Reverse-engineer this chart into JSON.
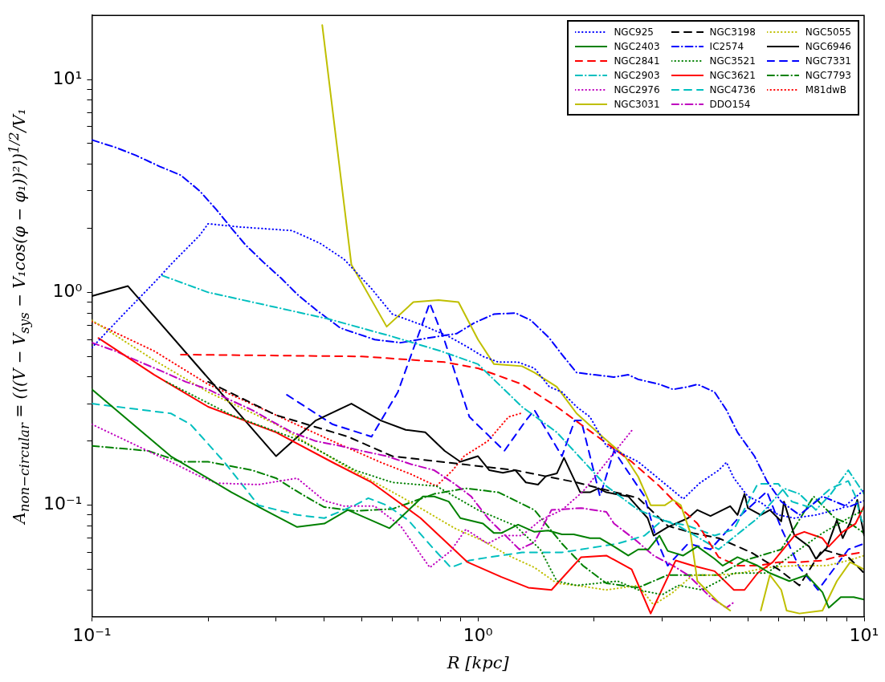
{
  "chart_data": {
    "type": "line",
    "xlabel": "R [kpc]",
    "ylabel": "A$_{non−circular}$ = (⟨(V − V$_{sys}$ − V₁cos(φ − φ₁))²⟩)$^{1/2}$/V₁",
    "log": "xy",
    "grid": false,
    "legend": "top right",
    "xlim": [
      0.1,
      10
    ],
    "ylim": [
      0.03,
      20
    ],
    "xticks": [
      {
        "value": 0.1,
        "label": "10⁻¹"
      },
      {
        "value": 0.2,
        "label": null
      },
      {
        "value": 0.3,
        "label": null
      },
      {
        "value": 0.4,
        "label": null
      },
      {
        "value": 0.5,
        "label": null
      },
      {
        "value": 0.6,
        "label": null
      },
      {
        "value": 0.7,
        "label": null
      },
      {
        "value": 0.8,
        "label": null
      },
      {
        "value": 0.9,
        "label": null
      },
      {
        "value": 1,
        "label": "10⁰"
      },
      {
        "value": 2,
        "label": null
      },
      {
        "value": 3,
        "label": null
      },
      {
        "value": 4,
        "label": null
      },
      {
        "value": 5,
        "label": null
      },
      {
        "value": 6,
        "label": null
      },
      {
        "value": 7,
        "label": null
      },
      {
        "value": 8,
        "label": null
      },
      {
        "value": 9,
        "label": null
      },
      {
        "value": 10,
        "label": "10¹"
      }
    ],
    "yticks": [
      {
        "value": 0.04,
        "label": null
      },
      {
        "value": 0.05,
        "label": null
      },
      {
        "value": 0.06,
        "label": null
      },
      {
        "value": 0.07,
        "label": null
      },
      {
        "value": 0.08,
        "label": null
      },
      {
        "value": 0.09,
        "label": null
      },
      {
        "value": 0.1,
        "label": "10⁻¹"
      },
      {
        "value": 0.2,
        "label": null
      },
      {
        "value": 0.3,
        "label": null
      },
      {
        "value": 0.4,
        "label": null
      },
      {
        "value": 0.5,
        "label": null
      },
      {
        "value": 0.6,
        "label": null
      },
      {
        "value": 0.7,
        "label": null
      },
      {
        "value": 0.8,
        "label": null
      },
      {
        "value": 0.9,
        "label": null
      },
      {
        "value": 1,
        "label": "10⁰"
      },
      {
        "value": 2,
        "label": null
      },
      {
        "value": 3,
        "label": null
      },
      {
        "value": 4,
        "label": null
      },
      {
        "value": 5,
        "label": null
      },
      {
        "value": 6,
        "label": null
      },
      {
        "value": 7,
        "label": null
      },
      {
        "value": 8,
        "label": null
      },
      {
        "value": 9,
        "label": null
      },
      {
        "value": 10,
        "label": "10¹"
      }
    ],
    "series": [
      {
        "name": "NGC925",
        "color": "#0000ff",
        "line_style": "dotted",
        "x": [
          0.1,
          0.12,
          0.147,
          0.16,
          0.19,
          0.2,
          0.24,
          0.33,
          0.39,
          0.45,
          0.53,
          0.6,
          0.72,
          0.84,
          0.93,
          1.03,
          1.13,
          1.27,
          1.4,
          1.53,
          1.65,
          1.8,
          1.95,
          2.15,
          2.6,
          3.1,
          3.4,
          3.75,
          4.2,
          4.4,
          4.6,
          5,
          5.4,
          6,
          6.6,
          7.5,
          8.8,
          10
        ],
        "values": [
          0.55,
          0.78,
          1.14,
          1.35,
          1.85,
          2.1,
          2.03,
          1.95,
          1.7,
          1.43,
          1.04,
          0.79,
          0.7,
          0.62,
          0.56,
          0.5,
          0.47,
          0.47,
          0.44,
          0.36,
          0.34,
          0.29,
          0.26,
          0.19,
          0.16,
          0.123,
          0.107,
          0.127,
          0.146,
          0.159,
          0.134,
          0.11,
          0.103,
          0.09,
          0.087,
          0.09,
          0.097,
          0.118
        ]
      },
      {
        "name": "NGC2403",
        "color": "#008000",
        "line_style": "solid",
        "x": [
          0.1,
          0.16,
          0.23,
          0.28,
          0.34,
          0.4,
          0.46,
          0.59,
          0.72,
          0.77,
          0.84,
          0.9,
          1.03,
          1.1,
          1.15,
          1.27,
          1.4,
          1.52,
          1.65,
          1.77,
          1.95,
          2.07,
          2.25,
          2.45,
          2.6,
          2.76,
          2.95,
          3.1,
          3.4,
          3.7,
          4.1,
          4.3,
          4.7,
          5.3,
          5.7,
          6.4,
          7.1,
          7.8,
          8.1,
          8.7,
          9.4,
          10
        ],
        "values": [
          0.35,
          0.17,
          0.115,
          0.095,
          0.079,
          0.082,
          0.095,
          0.078,
          0.11,
          0.11,
          0.104,
          0.087,
          0.082,
          0.074,
          0.074,
          0.081,
          0.075,
          0.076,
          0.073,
          0.073,
          0.07,
          0.07,
          0.064,
          0.058,
          0.062,
          0.062,
          0.072,
          0.061,
          0.058,
          0.064,
          0.056,
          0.052,
          0.057,
          0.052,
          0.048,
          0.044,
          0.047,
          0.039,
          0.033,
          0.037,
          0.037,
          0.036
        ]
      },
      {
        "name": "NGC2841",
        "color": "#ff0000",
        "line_style": "dashed",
        "x": [
          0.17,
          0.5,
          0.82,
          1.0,
          1.3,
          1.6,
          2.2,
          2.5,
          2.95,
          3.35,
          3.7,
          4.2,
          4.7,
          5.3,
          6,
          6.8,
          7.8,
          8.4,
          9.8,
          10
        ],
        "values": [
          0.51,
          0.5,
          0.47,
          0.44,
          0.37,
          0.29,
          0.19,
          0.16,
          0.123,
          0.097,
          0.082,
          0.057,
          0.052,
          0.052,
          0.054,
          0.054,
          0.055,
          0.057,
          0.06,
          0.06
        ]
      },
      {
        "name": "NGC2903",
        "color": "#00bfbf",
        "line_style": "dashdot",
        "x": [
          0.152,
          0.2,
          0.3,
          0.41,
          0.6,
          0.8,
          1.0,
          1.3,
          1.6,
          2.15,
          2.6,
          3.3,
          4.2,
          5.3,
          6.2,
          6.8,
          7.5,
          8.2,
          9.1,
          10
        ],
        "values": [
          1.2,
          1.0,
          0.85,
          0.75,
          0.62,
          0.53,
          0.46,
          0.29,
          0.22,
          0.123,
          0.095,
          0.08,
          0.062,
          0.087,
          0.12,
          0.113,
          0.095,
          0.113,
          0.146,
          0.113
        ]
      },
      {
        "name": "NGC2976",
        "color": "#bf00bf",
        "line_style": "dotted",
        "x": [
          0.1,
          0.16,
          0.19,
          0.21,
          0.27,
          0.34,
          0.4,
          0.45,
          0.54,
          0.63,
          0.75,
          0.85,
          0.93,
          1.06,
          1.16,
          1.3,
          1.45,
          1.65,
          1.87,
          2.15,
          2.5
        ],
        "values": [
          0.24,
          0.16,
          0.137,
          0.127,
          0.125,
          0.134,
          0.105,
          0.099,
          0.099,
          0.08,
          0.051,
          0.061,
          0.077,
          0.066,
          0.072,
          0.072,
          0.085,
          0.095,
          0.116,
          0.159,
          0.224
        ]
      },
      {
        "name": "NGC3031",
        "color": "#bfbf00",
        "line_style": "solid",
        "x": [
          0.395,
          0.47,
          0.58,
          0.68,
          0.79,
          0.89,
          1.0,
          1.1,
          1.3,
          1.4,
          1.6,
          1.8,
          2.1,
          2.4,
          2.6,
          2.8,
          3.05,
          3.2,
          3.35,
          3.55,
          3.7,
          4.2,
          4.5,
          5.0,
          5.4,
          5.7,
          6.1,
          6.3,
          6.8,
          7.8,
          8.5,
          9.2,
          10
        ],
        "values": [
          18,
          1.35,
          0.69,
          0.9,
          0.92,
          0.9,
          0.6,
          0.46,
          0.45,
          0.42,
          0.36,
          0.27,
          0.21,
          0.17,
          0.136,
          0.1,
          0.1,
          0.106,
          0.1,
          0.074,
          0.044,
          0.035,
          0.032,
          null,
          0.032,
          0.047,
          0.04,
          0.032,
          0.031,
          0.032,
          0.044,
          0.054,
          0.05
        ]
      },
      {
        "name": "NGC3198",
        "color": "#000000",
        "line_style": "dashed",
        "x": [
          0.2,
          0.3,
          0.46,
          0.6,
          0.8,
          1.25,
          1.8,
          2.6,
          3.1,
          3.6,
          4.2,
          5.1,
          6,
          6.8,
          7.8,
          9.1,
          10
        ],
        "values": [
          0.38,
          0.265,
          0.21,
          0.17,
          0.16,
          0.146,
          0.128,
          0.108,
          0.08,
          0.074,
          0.07,
          0.06,
          0.05,
          0.042,
          0.062,
          0.057,
          0.048
        ]
      },
      {
        "name": "IC2574",
        "color": "#0000ff",
        "line_style": "dashdot",
        "x": [
          0.1,
          0.115,
          0.13,
          0.15,
          0.17,
          0.19,
          0.21,
          0.23,
          0.25,
          0.28,
          0.31,
          0.34,
          0.38,
          0.44,
          0.54,
          0.63,
          0.74,
          0.88,
          0.98,
          1.1,
          1.25,
          1.37,
          1.53,
          1.65,
          1.8,
          2,
          2.25,
          2.45,
          2.6,
          2.95,
          3.2,
          3.5,
          3.7,
          4.1,
          4.4,
          4.7,
          5.2,
          5.6,
          6.1,
          6.8,
          7.8,
          9.1,
          10
        ],
        "values": [
          5.2,
          4.8,
          4.4,
          3.9,
          3.55,
          3.0,
          2.45,
          2.0,
          1.67,
          1.37,
          1.16,
          0.98,
          0.83,
          0.68,
          0.6,
          0.58,
          0.61,
          0.64,
          0.72,
          0.79,
          0.8,
          0.74,
          0.61,
          0.51,
          0.42,
          0.41,
          0.4,
          0.41,
          0.39,
          0.37,
          0.35,
          0.36,
          0.37,
          0.34,
          0.28,
          0.22,
          0.17,
          0.13,
          0.104,
          0.09,
          0.11,
          0.098,
          0.105
        ]
      },
      {
        "name": "NGC3521",
        "color": "#008000",
        "line_style": "dotted",
        "x": [
          0.156,
          0.23,
          0.35,
          0.48,
          0.6,
          0.78,
          1.0,
          1.25,
          1.45,
          1.6,
          1.8,
          2.3,
          2.6,
          3,
          3.3,
          3.8,
          4.6,
          5.6,
          6.8,
          7.8,
          9.1,
          10
        ],
        "values": [
          0.38,
          0.265,
          0.2,
          0.146,
          0.128,
          0.123,
          0.095,
          0.08,
          0.062,
          0.044,
          0.042,
          0.044,
          0.04,
          0.038,
          0.042,
          0.04,
          0.048,
          0.048,
          0.062,
          0.074,
          0.087,
          0.095
        ]
      },
      {
        "name": "NGC3621",
        "color": "#ff0000",
        "line_style": "solid",
        "x": [
          0.104,
          0.145,
          0.2,
          0.3,
          0.42,
          0.53,
          0.71,
          0.94,
          1.15,
          1.35,
          1.55,
          1.85,
          2.15,
          2.5,
          2.8,
          3.25,
          3.6,
          4.1,
          4.6,
          4.9,
          5.3,
          5.8,
          6.6,
          7,
          7.8,
          8.1,
          8.8,
          9.5,
          10
        ],
        "values": [
          0.61,
          0.41,
          0.29,
          0.22,
          0.159,
          0.128,
          0.087,
          0.054,
          0.046,
          0.041,
          0.04,
          0.057,
          0.058,
          0.05,
          0.031,
          0.055,
          0.052,
          0.049,
          0.04,
          0.04,
          0.048,
          0.054,
          0.072,
          0.075,
          0.07,
          0.064,
          0.075,
          0.082,
          0.099
        ]
      },
      {
        "name": "NGC4736",
        "color": "#00bfbf",
        "line_style": "dashed",
        "x": [
          0.1,
          0.16,
          0.18,
          0.22,
          0.27,
          0.34,
          0.4,
          0.48,
          0.52,
          0.58,
          0.66,
          0.77,
          0.85,
          0.95,
          1.07,
          1.3,
          1.65,
          2.3,
          2.7,
          3,
          3.5,
          4.1,
          4.6,
          5.3,
          6,
          6.5,
          7.2,
          8.2,
          9.1,
          9.5,
          9.8,
          10
        ],
        "values": [
          0.3,
          0.27,
          0.24,
          0.16,
          0.1,
          0.09,
          0.087,
          0.1,
          0.108,
          0.1,
          0.085,
          0.062,
          0.051,
          0.055,
          0.057,
          0.06,
          0.06,
          0.066,
          0.072,
          0.085,
          0.08,
          0.072,
          0.077,
          0.126,
          0.126,
          0.104,
          0.098,
          0.12,
          0.13,
          0.11,
          0.087,
          0.08
        ]
      },
      {
        "name": "DDO154",
        "color": "#bf00bf",
        "line_style": "dashdot",
        "x": [
          0.1,
          0.115,
          0.13,
          0.15,
          0.175,
          0.2,
          0.23,
          0.26,
          0.29,
          0.33,
          0.38,
          0.44,
          0.5,
          0.58,
          0.67,
          0.77,
          0.87,
          0.96,
          1.06,
          1.28,
          1.4,
          1.55,
          1.85,
          2.15,
          2.25,
          2.55,
          2.85,
          3.2,
          3.5,
          4,
          4.4,
          4.6
        ],
        "values": [
          0.58,
          0.53,
          0.48,
          0.43,
          0.38,
          0.35,
          0.31,
          0.28,
          0.25,
          0.22,
          0.2,
          0.19,
          0.18,
          0.17,
          0.156,
          0.146,
          0.126,
          0.11,
          0.087,
          0.062,
          0.067,
          0.095,
          0.097,
          0.093,
          0.082,
          0.069,
          0.058,
          0.052,
          0.047,
          0.037,
          0.033,
          0.035
        ]
      },
      {
        "name": "NGC5055",
        "color": "#bfbf00",
        "line_style": "dotted",
        "x": [
          0.1,
          0.145,
          0.2,
          0.3,
          0.46,
          0.63,
          0.87,
          1.03,
          1.2,
          1.4,
          1.6,
          1.8,
          2.15,
          2.6,
          2.85,
          3.2,
          3.6,
          4.2,
          4.8,
          5.6,
          6.6,
          8,
          9.1,
          10
        ],
        "values": [
          0.74,
          0.48,
          0.34,
          0.24,
          0.15,
          0.11,
          0.078,
          0.068,
          0.058,
          0.051,
          0.043,
          0.042,
          0.04,
          0.042,
          0.034,
          0.039,
          0.047,
          0.047,
          0.048,
          0.051,
          0.052,
          0.052,
          0.055,
          0.058
        ]
      },
      {
        "name": "NGC6946",
        "color": "#000000",
        "line_style": "solid",
        "x": [
          0.1,
          0.124,
          0.3,
          0.38,
          0.47,
          0.56,
          0.65,
          0.73,
          0.82,
          0.9,
          1.0,
          1.07,
          1.16,
          1.25,
          1.33,
          1.43,
          1.5,
          1.6,
          1.67,
          1.84,
          1.95,
          2.05,
          2.15,
          2.45,
          2.75,
          2.85,
          3.1,
          3.5,
          3.7,
          4,
          4.3,
          4.5,
          4.7,
          4.9,
          5,
          5.4,
          5.7,
          6.1,
          6.2,
          6.6,
          7.2,
          7.5,
          8,
          8.5,
          8.8,
          9.2,
          9.6,
          10
        ],
        "values": [
          0.96,
          1.07,
          0.17,
          0.25,
          0.3,
          0.25,
          0.226,
          0.22,
          0.18,
          0.16,
          0.17,
          0.146,
          0.142,
          0.146,
          0.128,
          0.125,
          0.137,
          0.141,
          0.167,
          0.115,
          0.115,
          0.12,
          0.115,
          0.11,
          0.087,
          0.072,
          0.079,
          0.087,
          0.095,
          0.089,
          0.095,
          0.099,
          0.09,
          0.113,
          0.097,
          0.09,
          0.095,
          0.084,
          0.104,
          0.072,
          0.064,
          0.056,
          0.063,
          0.085,
          0.07,
          0.083,
          0.106,
          0.072
        ]
      },
      {
        "name": "NGC7331",
        "color": "#0000ff",
        "line_style": "dashed",
        "x": [
          0.32,
          0.42,
          0.53,
          0.62,
          0.75,
          0.82,
          0.95,
          1.17,
          1.33,
          1.4,
          1.65,
          1.78,
          1.85,
          2.07,
          2.25,
          2.7,
          2.9,
          3.1,
          3.5,
          4,
          4.8,
          5.6,
          6.1,
          6.8,
          7.6,
          8.4,
          9.1,
          10
        ],
        "values": [
          0.33,
          0.24,
          0.21,
          0.34,
          0.89,
          0.59,
          0.26,
          0.18,
          0.25,
          0.28,
          0.17,
          0.25,
          0.25,
          0.11,
          0.18,
          0.11,
          0.069,
          0.052,
          0.066,
          0.062,
          0.09,
          0.116,
          0.078,
          0.051,
          0.04,
          0.051,
          0.062,
          0.066
        ]
      },
      {
        "name": "NGC7793",
        "color": "#008000",
        "line_style": "dashdot",
        "x": [
          0.1,
          0.14,
          0.17,
          0.2,
          0.26,
          0.3,
          0.33,
          0.37,
          0.4,
          0.48,
          0.6,
          0.77,
          0.93,
          1.13,
          1.4,
          1.65,
          1.87,
          2.15,
          2.6,
          3.1,
          4.2,
          4.9,
          6.1,
          7.4,
          8.4,
          9.4,
          10
        ],
        "values": [
          0.19,
          0.18,
          0.16,
          0.16,
          0.146,
          0.134,
          0.12,
          0.106,
          0.098,
          0.094,
          0.096,
          0.113,
          0.12,
          0.115,
          0.095,
          0.066,
          0.052,
          0.043,
          0.041,
          0.047,
          0.047,
          0.055,
          0.062,
          0.11,
          0.087,
          0.08,
          0.074
        ]
      },
      {
        "name": "M81dwB",
        "color": "#ff0000",
        "line_style": "dotted",
        "x": [
          0.1,
          0.145,
          0.2,
          0.3,
          0.42,
          0.56,
          0.67,
          0.78,
          0.86,
          0.92,
          1.06,
          1.2,
          1.29
        ],
        "values": [
          0.73,
          0.53,
          0.37,
          0.265,
          0.2,
          0.159,
          0.14,
          0.123,
          0.146,
          0.17,
          0.2,
          0.26,
          0.27
        ]
      }
    ]
  }
}
